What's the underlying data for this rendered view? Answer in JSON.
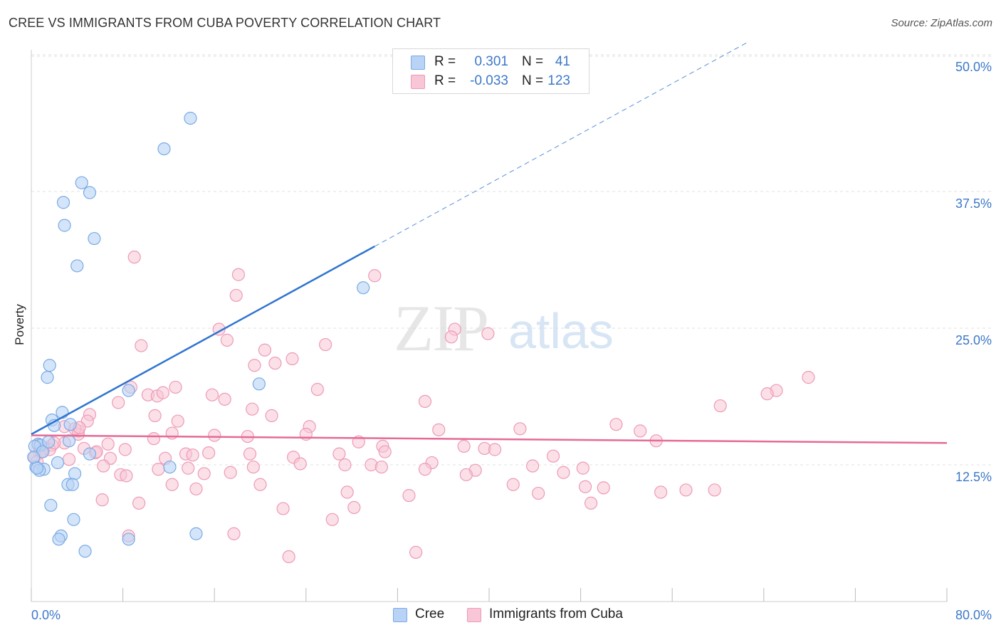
{
  "title": "CREE VS IMMIGRANTS FROM CUBA POVERTY CORRELATION CHART",
  "source": "Source: ZipAtlas.com",
  "watermark": {
    "part1": "ZIP",
    "part2": "atlas"
  },
  "colors": {
    "cree_fill": "#b8d3f5",
    "cree_stroke": "#7aaae6",
    "cree_line": "#2f74d0",
    "cuba_fill": "#f8c6d6",
    "cuba_stroke": "#ee9ab6",
    "cuba_line": "#e56a96",
    "axis_label": "#3c78c8",
    "grid": "#e2e2e2"
  },
  "legend": {
    "cree": {
      "r_label": "R =",
      "r_value": "0.301",
      "n_label": "N =",
      "n_value": "41"
    },
    "cuba": {
      "r_label": "R =",
      "r_value": "-0.033",
      "n_label": "N =",
      "n_value": "123"
    }
  },
  "bottom_legend": {
    "cree": "Cree",
    "cuba": "Immigrants from Cuba"
  },
  "chart_data": {
    "type": "scatter",
    "title": "CREE VS IMMIGRANTS FROM CUBA POVERTY CORRELATION CHART",
    "xlabel": "",
    "ylabel": "Poverty",
    "xlim": [
      0,
      80
    ],
    "ylim": [
      0,
      52
    ],
    "x_tick_labels": {
      "min": "0.0%",
      "max": "80.0%"
    },
    "y_ticks": [
      {
        "value": 12.5,
        "label": "12.5%"
      },
      {
        "value": 25.0,
        "label": "25.0%"
      },
      {
        "value": 37.5,
        "label": "37.5%"
      },
      {
        "value": 50.0,
        "label": "50.0%"
      }
    ],
    "series": [
      {
        "name": "Cree",
        "trend": {
          "x_start": 0,
          "y_start": 15.3,
          "x_solid_end": 30,
          "x_end": 62.5,
          "y_end": 51.1
        },
        "points": [
          [
            13.9,
            44.2
          ],
          [
            11.6,
            41.4
          ],
          [
            4.4,
            38.3
          ],
          [
            5.1,
            37.4
          ],
          [
            2.8,
            36.5
          ],
          [
            2.9,
            34.4
          ],
          [
            5.5,
            33.2
          ],
          [
            4.0,
            30.7
          ],
          [
            29.0,
            28.7
          ],
          [
            1.6,
            21.6
          ],
          [
            1.4,
            20.5
          ],
          [
            19.9,
            19.9
          ],
          [
            8.5,
            19.3
          ],
          [
            2.7,
            17.3
          ],
          [
            1.8,
            16.6
          ],
          [
            3.4,
            16.2
          ],
          [
            2.0,
            16.1
          ],
          [
            0.6,
            14.4
          ],
          [
            0.8,
            14.3
          ],
          [
            3.3,
            14.7
          ],
          [
            0.3,
            14.2
          ],
          [
            5.1,
            13.5
          ],
          [
            0.4,
            12.3
          ],
          [
            1.1,
            12.1
          ],
          [
            0.7,
            12.0
          ],
          [
            3.8,
            11.7
          ],
          [
            3.2,
            10.7
          ],
          [
            3.6,
            10.7
          ],
          [
            1.7,
            8.8
          ],
          [
            3.7,
            7.5
          ],
          [
            2.6,
            6.0
          ],
          [
            2.4,
            5.7
          ],
          [
            12.1,
            12.3
          ],
          [
            14.4,
            6.2
          ],
          [
            4.7,
            4.6
          ],
          [
            8.5,
            5.7
          ],
          [
            1.0,
            13.7
          ],
          [
            0.2,
            13.2
          ],
          [
            2.3,
            12.7
          ],
          [
            0.5,
            12.2
          ],
          [
            1.5,
            14.6
          ]
        ]
      },
      {
        "name": "Immigrants from Cuba",
        "trend": {
          "x_start": 0,
          "y_start": 15.2,
          "x_end": 80,
          "y_end": 14.5
        },
        "points": [
          [
            9.0,
            31.5
          ],
          [
            18.1,
            29.9
          ],
          [
            30.0,
            29.8
          ],
          [
            17.9,
            28.0
          ],
          [
            16.4,
            24.9
          ],
          [
            37.0,
            24.9
          ],
          [
            39.9,
            24.5
          ],
          [
            36.7,
            24.2
          ],
          [
            17.1,
            23.9
          ],
          [
            25.7,
            23.5
          ],
          [
            9.6,
            23.4
          ],
          [
            20.4,
            23.0
          ],
          [
            22.8,
            22.2
          ],
          [
            21.3,
            21.8
          ],
          [
            19.5,
            21.6
          ],
          [
            67.9,
            20.5
          ],
          [
            12.6,
            19.6
          ],
          [
            25.0,
            19.4
          ],
          [
            65.1,
            19.3
          ],
          [
            8.7,
            19.6
          ],
          [
            15.8,
            18.9
          ],
          [
            10.2,
            18.9
          ],
          [
            11.0,
            18.8
          ],
          [
            11.5,
            19.1
          ],
          [
            64.3,
            19.0
          ],
          [
            16.9,
            18.5
          ],
          [
            34.4,
            18.3
          ],
          [
            7.6,
            18.2
          ],
          [
            60.2,
            17.9
          ],
          [
            19.3,
            17.6
          ],
          [
            21.0,
            17.0
          ],
          [
            5.1,
            17.1
          ],
          [
            10.8,
            17.0
          ],
          [
            12.8,
            16.5
          ],
          [
            4.9,
            16.5
          ],
          [
            51.1,
            16.2
          ],
          [
            2.9,
            16.0
          ],
          [
            24.3,
            16.0
          ],
          [
            4.1,
            15.6
          ],
          [
            35.6,
            15.7
          ],
          [
            42.7,
            15.8
          ],
          [
            53.2,
            15.6
          ],
          [
            12.3,
            15.4
          ],
          [
            24.0,
            15.3
          ],
          [
            4.1,
            15.3
          ],
          [
            16.0,
            15.2
          ],
          [
            18.9,
            15.1
          ],
          [
            10.7,
            14.9
          ],
          [
            54.6,
            14.7
          ],
          [
            6.7,
            14.4
          ],
          [
            28.6,
            14.6
          ],
          [
            2.9,
            14.5
          ],
          [
            0.6,
            14.3
          ],
          [
            30.7,
            14.2
          ],
          [
            37.8,
            14.2
          ],
          [
            39.6,
            14.0
          ],
          [
            40.5,
            13.9
          ],
          [
            8.2,
            13.9
          ],
          [
            4.6,
            14.0
          ],
          [
            1.1,
            14.0
          ],
          [
            0.7,
            13.6
          ],
          [
            15.5,
            13.6
          ],
          [
            19.1,
            13.5
          ],
          [
            5.6,
            13.6
          ],
          [
            13.5,
            13.5
          ],
          [
            14.1,
            13.4
          ],
          [
            45.6,
            13.3
          ],
          [
            0.3,
            13.2
          ],
          [
            11.7,
            13.1
          ],
          [
            6.9,
            13.1
          ],
          [
            22.9,
            13.2
          ],
          [
            0.5,
            12.8
          ],
          [
            3.3,
            13.0
          ],
          [
            23.5,
            12.6
          ],
          [
            27.4,
            12.5
          ],
          [
            29.7,
            12.5
          ],
          [
            30.6,
            12.3
          ],
          [
            35.0,
            12.7
          ],
          [
            43.8,
            12.4
          ],
          [
            6.3,
            12.4
          ],
          [
            13.7,
            12.2
          ],
          [
            19.4,
            12.3
          ],
          [
            34.4,
            12.1
          ],
          [
            48.2,
            12.2
          ],
          [
            38.8,
            12.0
          ],
          [
            11.1,
            12.1
          ],
          [
            46.5,
            11.8
          ],
          [
            17.4,
            11.8
          ],
          [
            7.8,
            11.6
          ],
          [
            15.1,
            11.7
          ],
          [
            8.3,
            11.5
          ],
          [
            38.0,
            11.6
          ],
          [
            42.1,
            10.7
          ],
          [
            12.3,
            10.7
          ],
          [
            20.0,
            10.7
          ],
          [
            48.4,
            10.5
          ],
          [
            50.0,
            10.4
          ],
          [
            14.4,
            10.3
          ],
          [
            27.6,
            10.0
          ],
          [
            57.2,
            10.2
          ],
          [
            59.7,
            10.2
          ],
          [
            44.3,
            9.9
          ],
          [
            55.0,
            10.0
          ],
          [
            33.0,
            9.7
          ],
          [
            6.2,
            9.3
          ],
          [
            9.4,
            9.0
          ],
          [
            48.9,
            9.0
          ],
          [
            22.0,
            8.5
          ],
          [
            28.2,
            8.6
          ],
          [
            26.3,
            7.5
          ],
          [
            8.5,
            6.0
          ],
          [
            17.7,
            6.2
          ],
          [
            33.6,
            4.5
          ],
          [
            22.5,
            4.1
          ],
          [
            3.8,
            15.8
          ],
          [
            4.2,
            15.9
          ],
          [
            1.8,
            14.3
          ],
          [
            1.6,
            13.9
          ],
          [
            0.9,
            13.7
          ],
          [
            5.7,
            13.7
          ],
          [
            30.9,
            13.7
          ],
          [
            26.9,
            13.5
          ],
          [
            2.0,
            14.5
          ]
        ]
      }
    ]
  }
}
